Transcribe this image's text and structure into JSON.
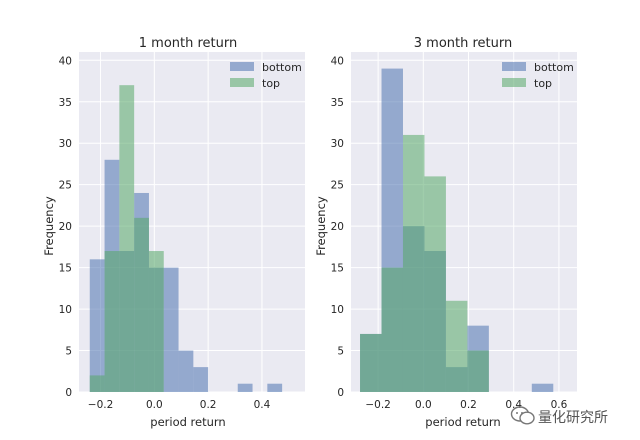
{
  "colors": {
    "background": "#eaeaf2",
    "grid": "#ffffff",
    "bottom": "#4c72b0",
    "top": "#55a868",
    "overlap": "#5f9f86"
  },
  "watermark": {
    "text": "量化研究所",
    "icon": "wechat-icon"
  },
  "chart_data": [
    {
      "type": "histogram",
      "title": "1 month return",
      "xlabel": "period return",
      "ylabel": "Frequency",
      "xlim": [
        -0.28,
        0.56
      ],
      "ylim": [
        0,
        41
      ],
      "xticks": [
        -0.2,
        0.0,
        0.2,
        0.4
      ],
      "xtick_labels": [
        "−0.2",
        "0.0",
        "0.2",
        "0.4"
      ],
      "yticks": [
        0,
        5,
        10,
        15,
        20,
        25,
        30,
        35,
        40
      ],
      "ytick_labels": [
        "0",
        "5",
        "10",
        "15",
        "20",
        "25",
        "30",
        "35",
        "40"
      ],
      "legend": [
        "bottom",
        "top"
      ],
      "legend_position": "top-right",
      "series": [
        {
          "name": "bottom",
          "bins": [
            [
              -0.24,
              -0.185,
              16
            ],
            [
              -0.185,
              -0.13,
              28
            ],
            [
              -0.13,
              -0.075,
              17
            ],
            [
              -0.075,
              -0.02,
              24
            ],
            [
              -0.02,
              0.035,
              15
            ],
            [
              0.035,
              0.09,
              15
            ],
            [
              0.09,
              0.145,
              5
            ],
            [
              0.145,
              0.2,
              3
            ],
            [
              0.2,
              0.255,
              0
            ],
            [
              0.255,
              0.31,
              0
            ],
            [
              0.31,
              0.365,
              1
            ],
            [
              0.365,
              0.42,
              0
            ],
            [
              0.42,
              0.475,
              1
            ]
          ]
        },
        {
          "name": "top",
          "bins": [
            [
              -0.24,
              -0.185,
              2
            ],
            [
              -0.185,
              -0.13,
              17
            ],
            [
              -0.13,
              -0.075,
              37
            ],
            [
              -0.075,
              -0.02,
              21
            ],
            [
              -0.02,
              0.035,
              17
            ],
            [
              0.035,
              0.09,
              0
            ]
          ]
        }
      ]
    },
    {
      "type": "histogram",
      "title": "3 month return",
      "xlabel": "period return",
      "ylabel": "Frequency",
      "xlim": [
        -0.32,
        0.68
      ],
      "ylim": [
        0,
        41
      ],
      "xticks": [
        -0.2,
        0.0,
        0.2,
        0.4,
        0.6
      ],
      "xtick_labels": [
        "−0.2",
        "0.0",
        "0.2",
        "0.4",
        "0.6"
      ],
      "yticks": [
        0,
        5,
        10,
        15,
        20,
        25,
        30,
        35,
        40
      ],
      "ytick_labels": [
        "0",
        "5",
        "10",
        "15",
        "20",
        "25",
        "30",
        "35",
        "40"
      ],
      "legend": [
        "bottom",
        "top"
      ],
      "legend_position": "top-right",
      "series": [
        {
          "name": "bottom",
          "bins": [
            [
              -0.28,
              -0.185,
              7
            ],
            [
              -0.185,
              -0.09,
              39
            ],
            [
              -0.09,
              0.005,
              20
            ],
            [
              0.005,
              0.1,
              17
            ],
            [
              0.1,
              0.195,
              3
            ],
            [
              0.195,
              0.29,
              8
            ],
            [
              0.29,
              0.385,
              0
            ],
            [
              0.385,
              0.48,
              0
            ],
            [
              0.48,
              0.575,
              1
            ]
          ]
        },
        {
          "name": "top",
          "bins": [
            [
              -0.28,
              -0.185,
              7
            ],
            [
              -0.185,
              -0.09,
              15
            ],
            [
              -0.09,
              0.005,
              31
            ],
            [
              0.005,
              0.1,
              26
            ],
            [
              0.1,
              0.195,
              11
            ],
            [
              0.195,
              0.29,
              5
            ]
          ]
        }
      ]
    }
  ]
}
